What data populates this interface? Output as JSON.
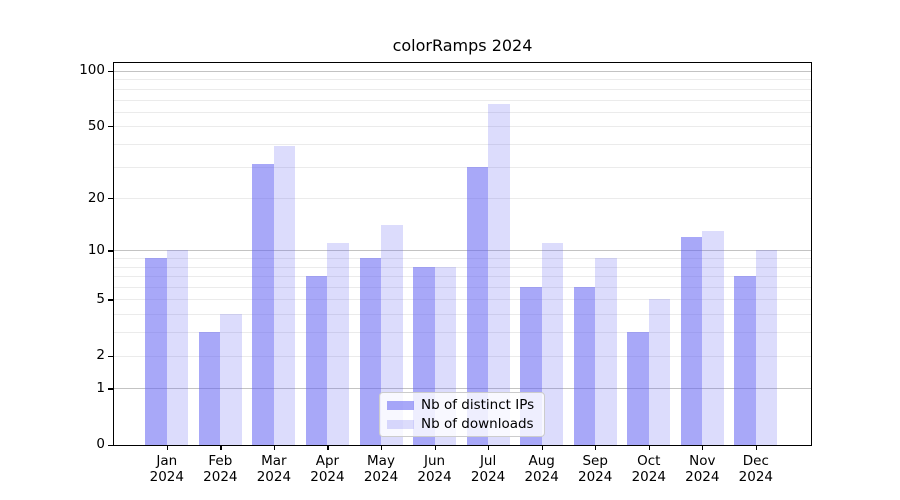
{
  "title": "colorRamps 2024",
  "chart_data": {
    "type": "bar",
    "title": "colorRamps 2024",
    "categories": [
      "Jan",
      "Feb",
      "Mar",
      "Apr",
      "May",
      "Jun",
      "Jul",
      "Aug",
      "Sep",
      "Oct",
      "Nov",
      "Dec"
    ],
    "year": "2024",
    "series": [
      {
        "name": "Nb of distinct IPs",
        "color": "rgba(97,97,242,0.55)",
        "values": [
          9,
          3,
          31,
          7,
          9,
          8,
          30,
          6,
          6,
          3,
          12,
          7
        ]
      },
      {
        "name": "Nb of downloads",
        "color": "rgba(97,97,242,0.22)",
        "values": [
          10,
          4,
          39,
          11,
          14,
          8,
          66,
          11,
          9,
          5,
          13,
          10
        ]
      }
    ],
    "scale": "log1p",
    "ylim": [
      0,
      113
    ],
    "ytick_labels": [
      "0",
      "1",
      "2",
      "5",
      "10",
      "20",
      "50",
      "100"
    ],
    "ytick_values": [
      0,
      1,
      2,
      5,
      10,
      20,
      50,
      100
    ],
    "major_gridlines": [
      1,
      10,
      100
    ],
    "minor_gridlines": [
      2,
      3,
      4,
      5,
      6,
      7,
      8,
      9,
      20,
      30,
      40,
      50,
      60,
      70,
      80,
      90
    ],
    "legend_position": "lower center",
    "grid": true,
    "colors": {
      "bar_base": "#6161f2",
      "major_grid": "#c3c3c3",
      "minor_grid": "#ebebeb",
      "axis": "#000000",
      "legend_border": "#cccccc"
    }
  }
}
